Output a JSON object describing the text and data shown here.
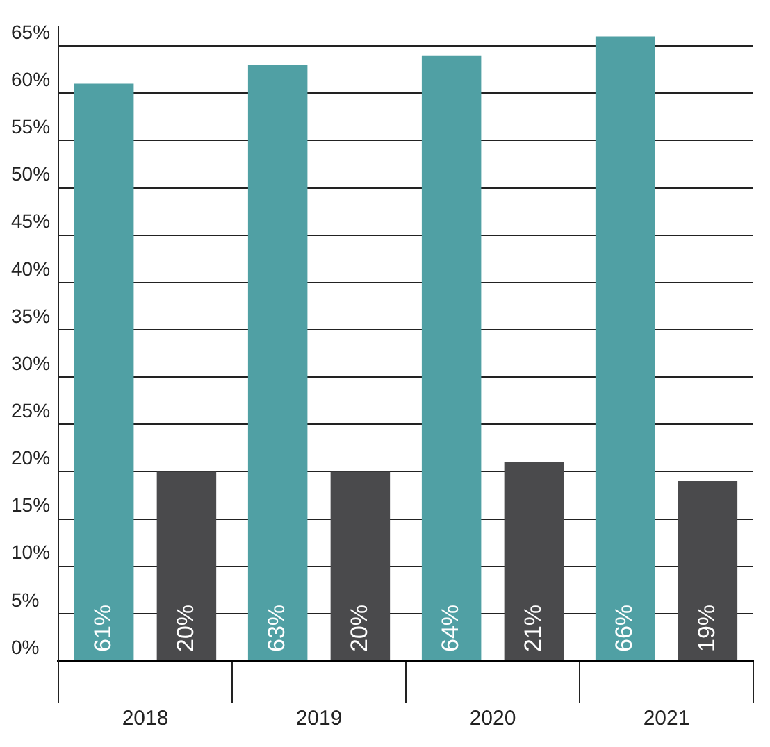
{
  "chart_data": {
    "type": "bar",
    "categories": [
      "2018",
      "2019",
      "2020",
      "2021"
    ],
    "series": [
      {
        "color": "#50a0a4",
        "values": [
          61,
          63,
          64,
          66
        ],
        "value_labels": [
          "61%",
          "63%",
          "64%",
          "66%"
        ]
      },
      {
        "color": "#4a4a4c",
        "values": [
          20,
          20,
          21,
          19
        ],
        "value_labels": [
          "20%",
          "20%",
          "21%",
          "19%"
        ]
      }
    ],
    "ylim": [
      0,
      67
    ],
    "yticks": [
      {
        "value": 0,
        "label": "0%"
      },
      {
        "value": 5,
        "label": "5%"
      },
      {
        "value": 10,
        "label": "10%"
      },
      {
        "value": 15,
        "label": "15%"
      },
      {
        "value": 20,
        "label": "20%"
      },
      {
        "value": 25,
        "label": "25%"
      },
      {
        "value": 30,
        "label": "30%"
      },
      {
        "value": 35,
        "label": "35%"
      },
      {
        "value": 40,
        "label": "40%"
      },
      {
        "value": 45,
        "label": "45%"
      },
      {
        "value": 50,
        "label": "50%"
      },
      {
        "value": 55,
        "label": "55%"
      },
      {
        "value": 60,
        "label": "60%"
      },
      {
        "value": 65,
        "label": "65%"
      }
    ],
    "grid": "y",
    "legend": false
  }
}
